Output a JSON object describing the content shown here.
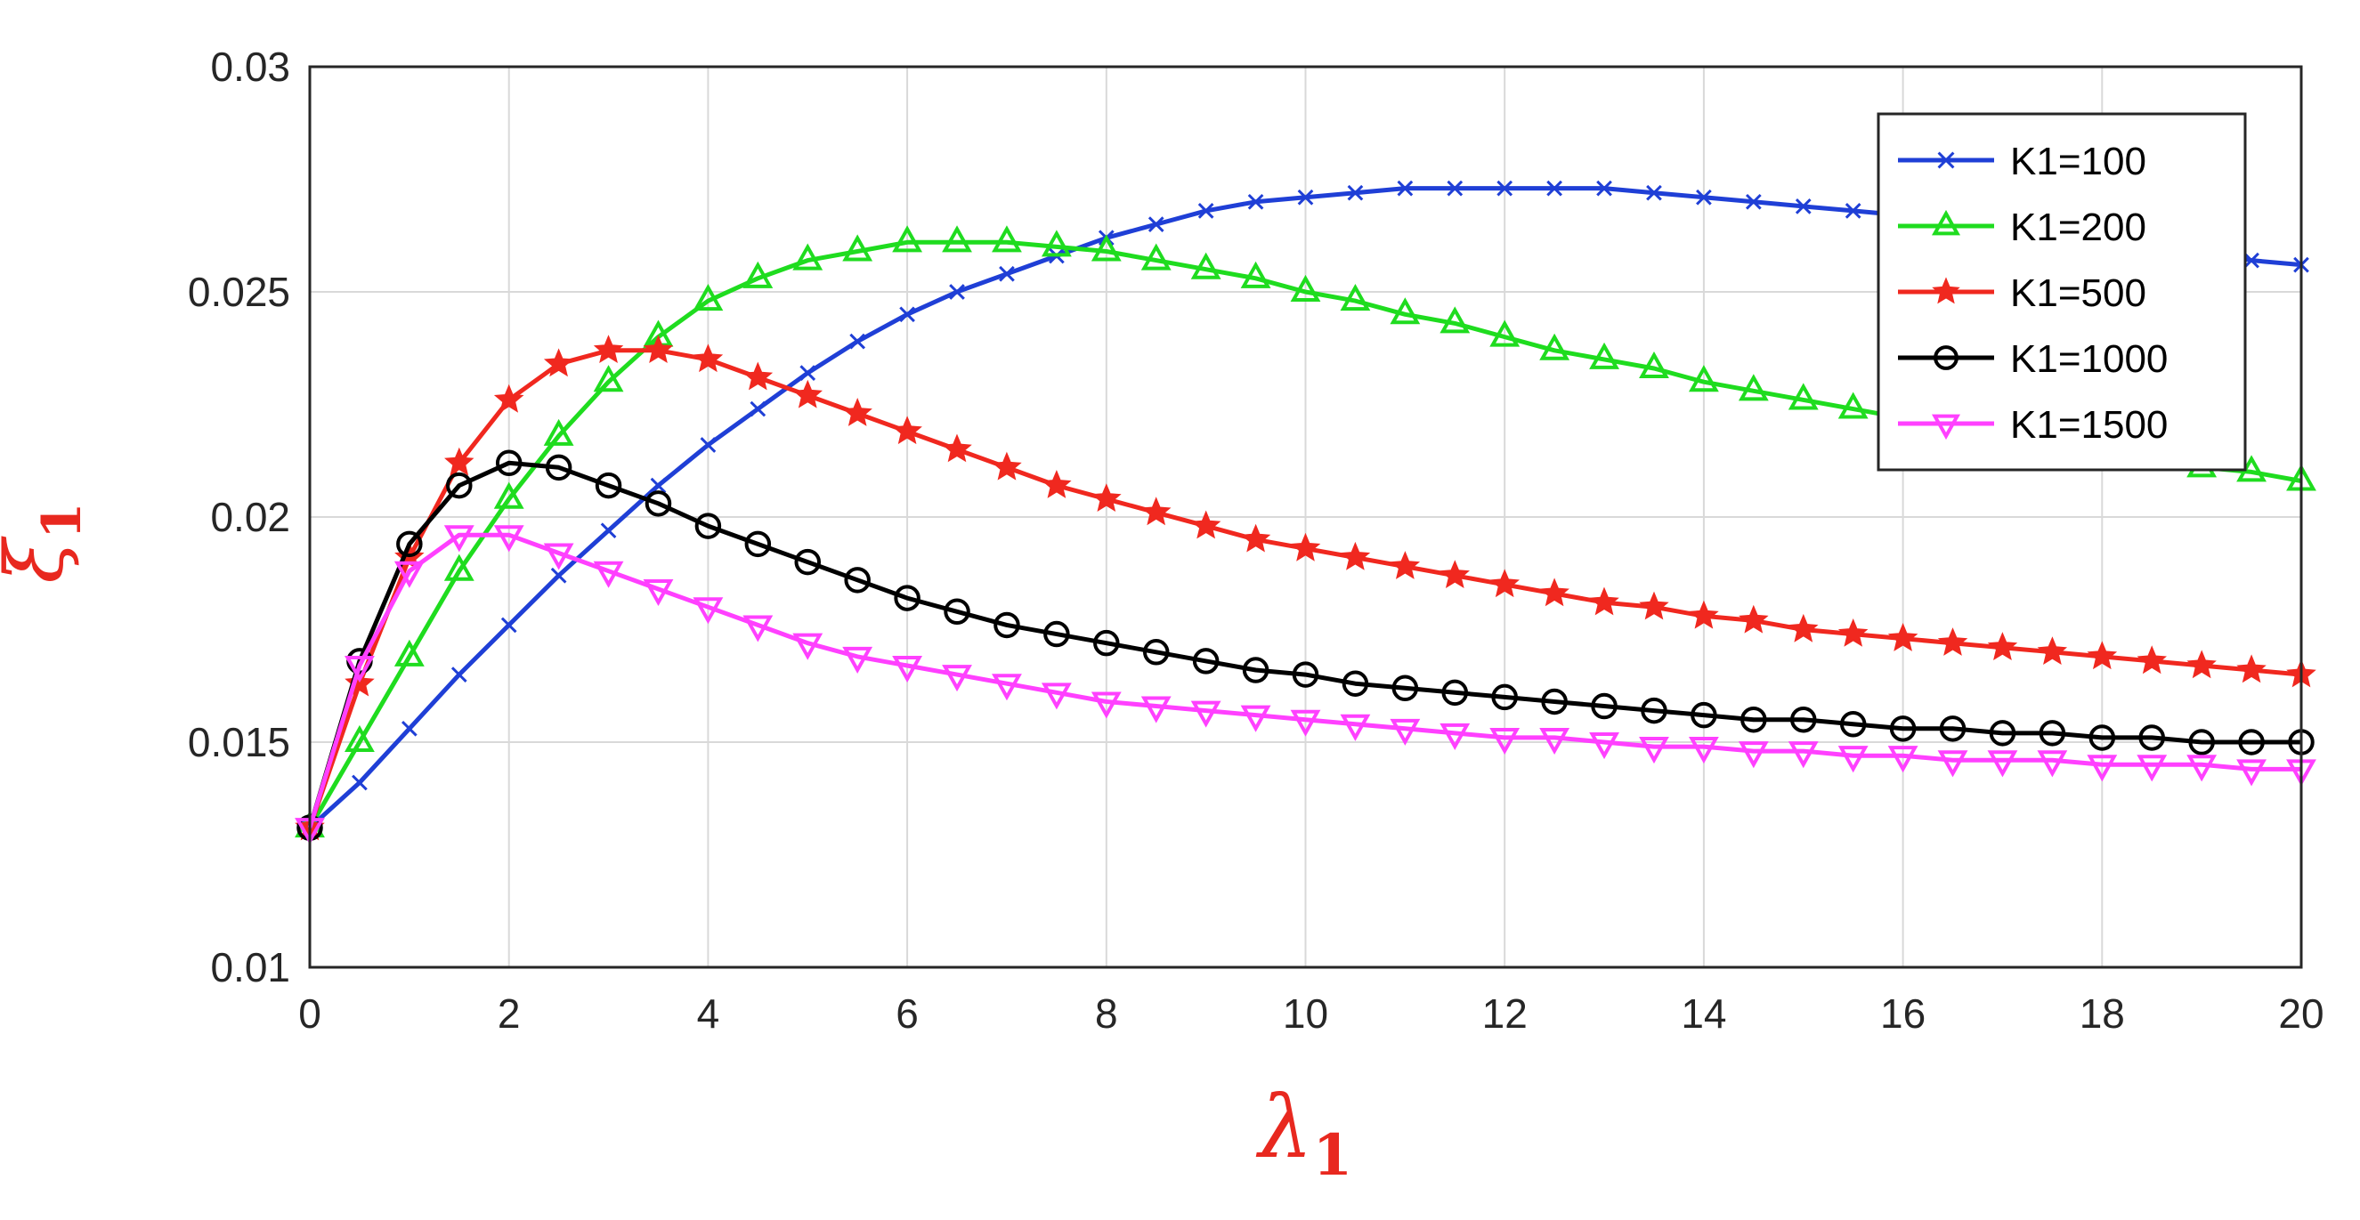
{
  "chart_data": {
    "type": "line",
    "xlabel": "λ",
    "xlabel_sub": "1",
    "ylabel": "ξ",
    "ylabel_sub": "1",
    "label_color": "#e8281f",
    "xlim": [
      0,
      20
    ],
    "ylim": [
      0.01,
      0.03
    ],
    "xticks": [
      0,
      2,
      4,
      6,
      8,
      10,
      12,
      14,
      16,
      18,
      20
    ],
    "yticks": [
      0.01,
      0.015,
      0.02,
      0.025,
      0.03
    ],
    "xtick_labels": [
      "0",
      "2",
      "4",
      "6",
      "8",
      "10",
      "12",
      "14",
      "16",
      "18",
      "20"
    ],
    "ytick_labels": [
      "0.01",
      "0.015",
      "0.02",
      "0.025",
      "0.03"
    ],
    "grid": true,
    "legend_position": "top-right",
    "x": [
      0,
      0.5,
      1,
      1.5,
      2,
      2.5,
      3,
      3.5,
      4,
      4.5,
      5,
      5.5,
      6,
      6.5,
      7,
      7.5,
      8,
      8.5,
      9,
      9.5,
      10,
      10.5,
      11,
      11.5,
      12,
      12.5,
      13,
      13.5,
      14,
      14.5,
      15,
      15.5,
      16,
      16.5,
      17,
      17.5,
      18,
      18.5,
      19,
      19.5,
      20
    ],
    "series": [
      {
        "name": "K1=100",
        "color": "#1f3fd6",
        "marker": "x-mark",
        "values": [
          0.0131,
          0.0141,
          0.0153,
          0.0165,
          0.0176,
          0.0187,
          0.0197,
          0.0207,
          0.0216,
          0.0224,
          0.0232,
          0.0239,
          0.0245,
          0.025,
          0.0254,
          0.0258,
          0.0262,
          0.0265,
          0.0268,
          0.027,
          0.0271,
          0.0272,
          0.0273,
          0.0273,
          0.0273,
          0.0273,
          0.0273,
          0.0272,
          0.0271,
          0.027,
          0.0269,
          0.0268,
          0.0267,
          0.0265,
          0.0264,
          0.0263,
          0.0261,
          0.026,
          0.0259,
          0.0257,
          0.0256
        ]
      },
      {
        "name": "K1=200",
        "color": "#1fdc1f",
        "marker": "triangle-up",
        "values": [
          0.0131,
          0.015,
          0.0169,
          0.0188,
          0.0204,
          0.0218,
          0.023,
          0.024,
          0.0248,
          0.0253,
          0.0257,
          0.0259,
          0.0261,
          0.0261,
          0.0261,
          0.026,
          0.0259,
          0.0257,
          0.0255,
          0.0253,
          0.025,
          0.0248,
          0.0245,
          0.0243,
          0.024,
          0.0237,
          0.0235,
          0.0233,
          0.023,
          0.0228,
          0.0226,
          0.0224,
          0.0222,
          0.0221,
          0.0219,
          0.0217,
          0.0215,
          0.0213,
          0.0211,
          0.021,
          0.0208
        ]
      },
      {
        "name": "K1=500",
        "color": "#f0281f",
        "marker": "star",
        "values": [
          0.0131,
          0.0163,
          0.0191,
          0.0212,
          0.0226,
          0.0234,
          0.0237,
          0.0237,
          0.0235,
          0.0231,
          0.0227,
          0.0223,
          0.0219,
          0.0215,
          0.0211,
          0.0207,
          0.0204,
          0.0201,
          0.0198,
          0.0195,
          0.0193,
          0.0191,
          0.0189,
          0.0187,
          0.0185,
          0.0183,
          0.0181,
          0.018,
          0.0178,
          0.0177,
          0.0175,
          0.0174,
          0.0173,
          0.0172,
          0.0171,
          0.017,
          0.0169,
          0.0168,
          0.0167,
          0.0166,
          0.0165
        ]
      },
      {
        "name": "K1=1000",
        "color": "#000000",
        "marker": "circle",
        "values": [
          0.0131,
          0.0168,
          0.0194,
          0.0207,
          0.0212,
          0.0211,
          0.0207,
          0.0203,
          0.0198,
          0.0194,
          0.019,
          0.0186,
          0.0182,
          0.0179,
          0.0176,
          0.0174,
          0.0172,
          0.017,
          0.0168,
          0.0166,
          0.0165,
          0.0163,
          0.0162,
          0.0161,
          0.016,
          0.0159,
          0.0158,
          0.0157,
          0.0156,
          0.0155,
          0.0155,
          0.0154,
          0.0153,
          0.0153,
          0.0152,
          0.0152,
          0.0151,
          0.0151,
          0.015,
          0.015,
          0.015
        ]
      },
      {
        "name": "K1=1500",
        "color": "#ff40ff",
        "marker": "triangle-down",
        "values": [
          0.0131,
          0.0167,
          0.0188,
          0.0196,
          0.0196,
          0.0192,
          0.0188,
          0.0184,
          0.018,
          0.0176,
          0.0172,
          0.0169,
          0.0167,
          0.0165,
          0.0163,
          0.0161,
          0.0159,
          0.0158,
          0.0157,
          0.0156,
          0.0155,
          0.0154,
          0.0153,
          0.0152,
          0.0151,
          0.0151,
          0.015,
          0.0149,
          0.0149,
          0.0148,
          0.0148,
          0.0147,
          0.0147,
          0.0146,
          0.0146,
          0.0146,
          0.0145,
          0.0145,
          0.0145,
          0.0144,
          0.0144
        ]
      }
    ]
  }
}
